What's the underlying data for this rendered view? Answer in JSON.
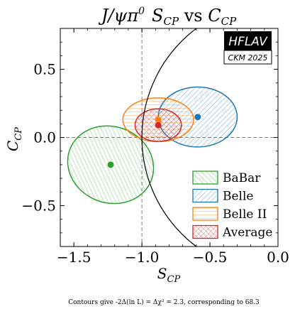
{
  "chart_data": {
    "type": "scatter",
    "title": {
      "prefix": "J/ψπ",
      "sup": "0",
      "s": "S",
      "cp1": "CP",
      "vs": " vs ",
      "c": "C",
      "cp2": "CP"
    },
    "xlabel": {
      "main": "S",
      "sub": "CP"
    },
    "ylabel": {
      "main": "C",
      "sub": "CP"
    },
    "xlim": [
      -1.6,
      0.0
    ],
    "ylim": [
      -0.8,
      0.8
    ],
    "x_ticks": [
      -1.5,
      -1.0,
      -0.5,
      0.0
    ],
    "x_tick_labels": [
      "−1.5",
      "−1.0",
      "−0.5",
      "0.0"
    ],
    "y_ticks": [
      -0.5,
      0.0,
      0.5
    ],
    "y_tick_labels": [
      "−0.5",
      "0.0",
      "0.5"
    ],
    "reference_lines": {
      "x": -1.0,
      "y": 0.0
    },
    "physical_boundary": "S² + C² = 1",
    "badge": {
      "title": "HFLAV",
      "subtitle": "CKM 2025"
    },
    "footnote": "Contours give -2Δ(ln L) = Δχ² = 2.3, corresponding to 68.3",
    "legend_position": "lower-right",
    "series": [
      {
        "name": "BaBar",
        "color": "#2ca02c",
        "center": [
          -1.23,
          -0.2
        ],
        "radii": [
          0.32,
          0.28
        ],
        "rotation_deg": 20,
        "hatch": "diag-down"
      },
      {
        "name": "Belle",
        "color": "#1f77b4",
        "center": [
          -0.59,
          0.15
        ],
        "radii": [
          0.29,
          0.22
        ],
        "rotation_deg": 0,
        "hatch": "diag-up"
      },
      {
        "name": "Belle II",
        "color": "#ff7f0e",
        "center": [
          -0.88,
          0.13
        ],
        "radii": [
          0.26,
          0.16
        ],
        "rotation_deg": 0,
        "hatch": "horizontal"
      },
      {
        "name": "Average",
        "color": "#d62728",
        "center": [
          -0.88,
          0.09
        ],
        "radii": [
          0.17,
          0.12
        ],
        "rotation_deg": 0,
        "hatch": "cross"
      }
    ]
  }
}
